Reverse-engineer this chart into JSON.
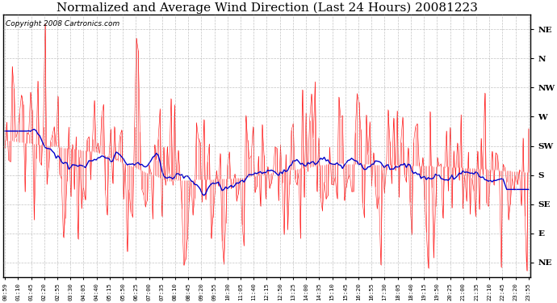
{
  "title": "Normalized and Average Wind Direction (Last 24 Hours) 20081223",
  "copyright": "Copyright 2008 Cartronics.com",
  "ytick_labels": [
    "NE",
    "N",
    "NW",
    "W",
    "SW",
    "S",
    "SE",
    "E",
    "NE"
  ],
  "ytick_values": [
    9,
    8,
    7,
    6,
    5,
    4,
    3,
    2,
    1
  ],
  "ylim": [
    0.5,
    9.5
  ],
  "background_color": "#ffffff",
  "grid_color": "#aaaaaa",
  "red_color": "#ff0000",
  "blue_color": "#0000cc",
  "title_fontsize": 11,
  "copyright_fontsize": 6.5,
  "xtick_labels": [
    "00:59",
    "01:10",
    "01:45",
    "02:20",
    "02:55",
    "03:30",
    "04:05",
    "04:40",
    "05:15",
    "05:50",
    "06:25",
    "07:00",
    "07:35",
    "08:10",
    "08:45",
    "09:20",
    "09:55",
    "10:30",
    "11:05",
    "11:40",
    "12:15",
    "12:50",
    "13:25",
    "14:00",
    "14:35",
    "15:10",
    "15:45",
    "16:20",
    "16:55",
    "17:30",
    "18:05",
    "18:40",
    "19:15",
    "19:50",
    "20:25",
    "21:00",
    "21:35",
    "22:10",
    "22:45",
    "23:20",
    "23:55"
  ],
  "num_points": 288,
  "seed": 12345,
  "avg_smooth_window": 25
}
